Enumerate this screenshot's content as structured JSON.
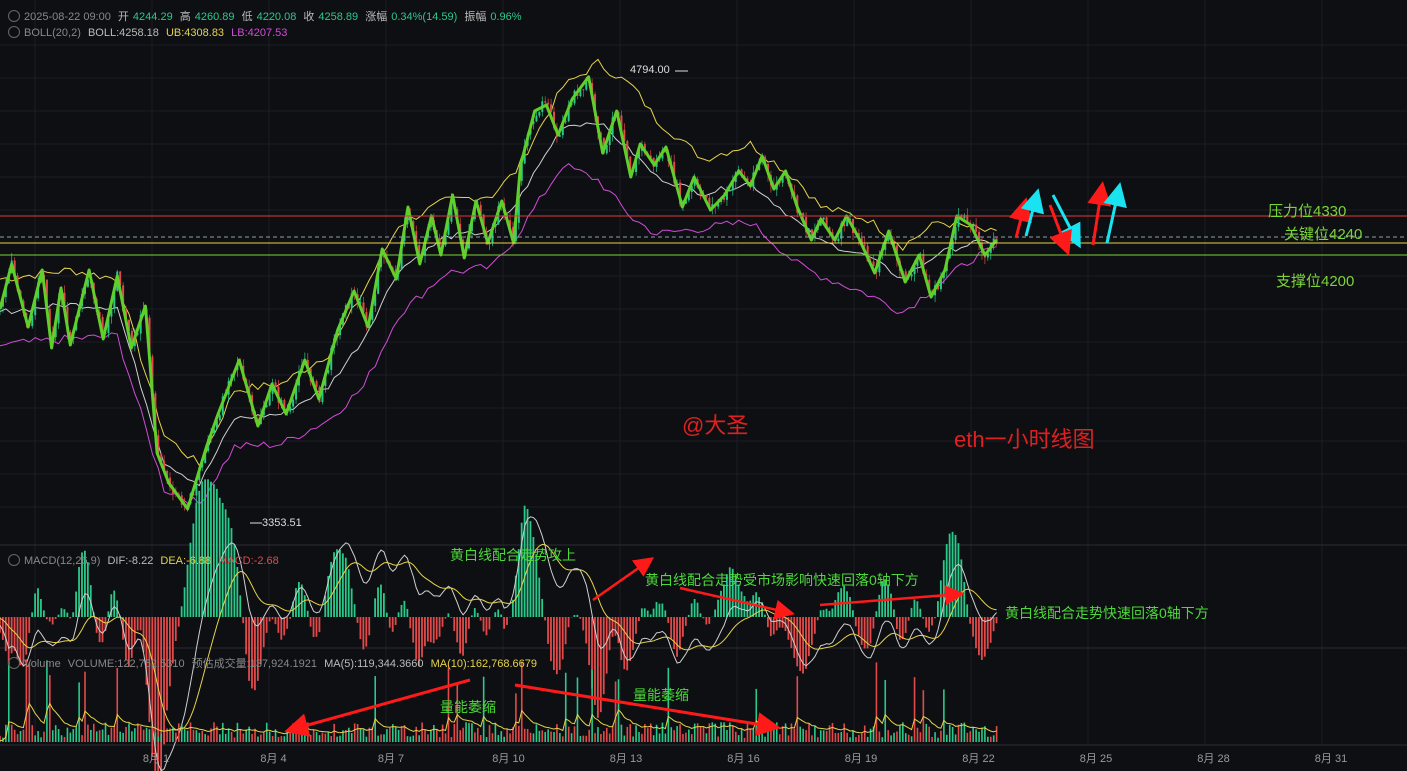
{
  "header": {
    "datetime": "2025-08-22 09:00",
    "open_label": "开",
    "open": "4244.29",
    "high_label": "高",
    "high": "4260.89",
    "low_label": "低",
    "low": "4220.08",
    "close_label": "收",
    "close": "4258.89",
    "change_label": "涨幅",
    "change": "0.34%(14.59)",
    "amp_label": "振幅",
    "amp": "0.96%"
  },
  "boll": {
    "name": "BOLL(20,2)",
    "boll": "BOLL:4258.18",
    "ub": "UB:4308.83",
    "lb": "LB:4207.53"
  },
  "macd": {
    "name": "MACD(12,26,9)",
    "dif": "DIF:-8.22",
    "dea": "DEA:-6.88",
    "macd": "MACD:-2.68"
  },
  "volume": {
    "name": "Volume",
    "vol": "VOLUME:122,752.5310",
    "est": "预估成交量:137,924.1921",
    "ma5": "MA(5):119,344.3660",
    "ma10": "MA(10):162,768.6679"
  },
  "annotations": {
    "high_marker": "4794.00",
    "low_marker": "3353.51",
    "resistance": "压力位4330",
    "key": "关键位4240",
    "support": "支撑位4200",
    "author": "@大圣",
    "title": "eth一小时线图",
    "macd_note1": "黄白线配合走势攻上",
    "macd_note2": "黄白线配合走势受市场影响快速回落0轴下方",
    "macd_note3": "黄白线配合走势快速回落0轴下方",
    "vol_note1": "量能萎缩",
    "vol_note2": "量能萎缩"
  },
  "colors": {
    "up": "#29c98a",
    "down": "#e24a4a",
    "zigzag": "#5fcf2a",
    "ub": "#e6d34a",
    "lb": "#d04cd6",
    "mid": "#cfcfcf",
    "resistance": "#e03a3a",
    "key": "#e6d34a",
    "support": "#7ad33a",
    "arrow_red": "#ff1a1a",
    "arrow_cyan": "#19e3f0"
  },
  "chart_data": {
    "type": "line",
    "x_ticks": [
      "8月 1",
      "8月 4",
      "8月 7",
      "8月 10",
      "8月 13",
      "8月 16",
      "8月 19",
      "8月 22",
      "8月 25",
      "8月 28",
      "8月 31"
    ],
    "ylim": [
      3250,
      4900
    ],
    "levels": [
      {
        "name": "压力位4330",
        "value": 4330
      },
      {
        "name": "关键位4240",
        "value": 4240
      },
      {
        "name": "支撑位4200",
        "value": 4200
      }
    ],
    "zigzag": [
      [
        0.0,
        4020
      ],
      [
        0.5,
        4170
      ],
      [
        1.2,
        3960
      ],
      [
        1.8,
        4150
      ],
      [
        2.2,
        3890
      ],
      [
        2.6,
        4090
      ],
      [
        3.0,
        3900
      ],
      [
        3.8,
        4150
      ],
      [
        4.4,
        3920
      ],
      [
        5.0,
        4130
      ],
      [
        5.6,
        3890
      ],
      [
        6.2,
        4030
      ],
      [
        6.7,
        3540
      ],
      [
        7.2,
        3440
      ],
      [
        8.0,
        3353.51
      ],
      [
        8.8,
        3560
      ],
      [
        9.3,
        3670
      ],
      [
        10.2,
        3850
      ],
      [
        11.0,
        3630
      ],
      [
        11.6,
        3770
      ],
      [
        12.2,
        3670
      ],
      [
        13.0,
        3850
      ],
      [
        13.6,
        3720
      ],
      [
        14.4,
        3950
      ],
      [
        15.1,
        4080
      ],
      [
        15.7,
        3960
      ],
      [
        16.3,
        4220
      ],
      [
        16.9,
        4120
      ],
      [
        17.4,
        4360
      ],
      [
        17.9,
        4170
      ],
      [
        18.4,
        4330
      ],
      [
        18.8,
        4200
      ],
      [
        19.3,
        4400
      ],
      [
        19.8,
        4190
      ],
      [
        20.3,
        4380
      ],
      [
        20.8,
        4240
      ],
      [
        21.4,
        4380
      ],
      [
        21.9,
        4240
      ],
      [
        22.2,
        4500
      ],
      [
        22.8,
        4680
      ],
      [
        23.3,
        4700
      ],
      [
        23.8,
        4600
      ],
      [
        24.4,
        4720
      ],
      [
        25.1,
        4794.0
      ],
      [
        25.7,
        4540
      ],
      [
        26.3,
        4680
      ],
      [
        26.9,
        4460
      ],
      [
        27.3,
        4570
      ],
      [
        27.9,
        4500
      ],
      [
        28.4,
        4560
      ],
      [
        29.1,
        4360
      ],
      [
        29.6,
        4460
      ],
      [
        30.3,
        4350
      ],
      [
        30.9,
        4400
      ],
      [
        31.5,
        4480
      ],
      [
        32.0,
        4430
      ],
      [
        32.5,
        4530
      ],
      [
        33.0,
        4420
      ],
      [
        33.5,
        4480
      ],
      [
        34.0,
        4360
      ],
      [
        34.6,
        4250
      ],
      [
        35.0,
        4320
      ],
      [
        35.6,
        4250
      ],
      [
        36.1,
        4330
      ],
      [
        36.6,
        4260
      ],
      [
        37.3,
        4140
      ],
      [
        37.9,
        4280
      ],
      [
        38.6,
        4110
      ],
      [
        39.2,
        4200
      ],
      [
        39.7,
        4060
      ],
      [
        40.3,
        4150
      ],
      [
        40.8,
        4330
      ],
      [
        41.4,
        4300
      ],
      [
        42.0,
        4200
      ],
      [
        42.5,
        4250
      ]
    ],
    "boll_ub": [
      [
        0,
        4120
      ],
      [
        3,
        4150
      ],
      [
        5,
        4120
      ],
      [
        7,
        3600
      ],
      [
        8.5,
        3500
      ],
      [
        10,
        3750
      ],
      [
        12,
        3770
      ],
      [
        14,
        3870
      ],
      [
        15.5,
        4080
      ],
      [
        17,
        4300
      ],
      [
        19,
        4380
      ],
      [
        21,
        4400
      ],
      [
        22,
        4480
      ],
      [
        24,
        4760
      ],
      [
        25.5,
        4840
      ],
      [
        27,
        4760
      ],
      [
        28,
        4650
      ],
      [
        30,
        4520
      ],
      [
        32,
        4570
      ],
      [
        34,
        4450
      ],
      [
        35,
        4360
      ],
      [
        37,
        4320
      ],
      [
        38.5,
        4230
      ],
      [
        40,
        4310
      ],
      [
        41.5,
        4290
      ],
      [
        42.5,
        4270
      ]
    ],
    "boll_lb": [
      [
        0,
        3900
      ],
      [
        3,
        3920
      ],
      [
        5,
        3930
      ],
      [
        7,
        3420
      ],
      [
        8.5,
        3370
      ],
      [
        10,
        3560
      ],
      [
        12,
        3570
      ],
      [
        14,
        3650
      ],
      [
        15.5,
        3760
      ],
      [
        17,
        4000
      ],
      [
        19,
        4140
      ],
      [
        21,
        4160
      ],
      [
        22,
        4260
      ],
      [
        24,
        4500
      ],
      [
        25.5,
        4450
      ],
      [
        27,
        4320
      ],
      [
        28,
        4270
      ],
      [
        30,
        4290
      ],
      [
        32,
        4310
      ],
      [
        34,
        4170
      ],
      [
        35,
        4130
      ],
      [
        37,
        4070
      ],
      [
        38.5,
        4010
      ],
      [
        40,
        4100
      ],
      [
        41.5,
        4190
      ],
      [
        42.5,
        4220
      ]
    ]
  }
}
